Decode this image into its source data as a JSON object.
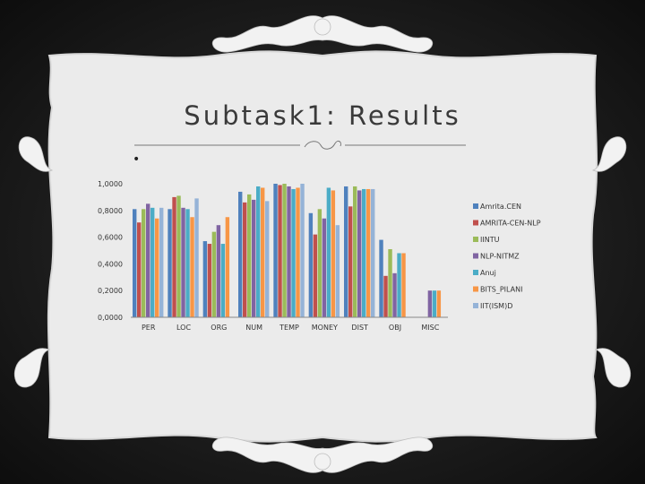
{
  "slide": {
    "title": "Subtask1: Results",
    "bullet": "•"
  },
  "colors": {
    "background": "#1c1c1c",
    "frame": "#ececec",
    "ornament": "#f2f2f2"
  },
  "chart_data": {
    "type": "bar",
    "title": "",
    "xlabel": "",
    "ylabel": "",
    "ylim": [
      0,
      1
    ],
    "grid": false,
    "legend_position": "right",
    "y_ticks": [
      "0,0000",
      "0,2000",
      "0,4000",
      "0,6000",
      "0,8000",
      "1,0000"
    ],
    "y_tick_values": [
      0,
      0.2,
      0.4,
      0.6,
      0.8,
      1.0
    ],
    "categories": [
      "PER",
      "LOC",
      "ORG",
      "NUM",
      "TEMP",
      "MONEY",
      "DIST",
      "OBJ",
      "MISC"
    ],
    "series": [
      {
        "name": "Amrita.CEN",
        "color": "#4f81bd",
        "values": [
          0.81,
          0.81,
          0.57,
          0.94,
          1.0,
          0.78,
          0.98,
          0.58,
          0
        ]
      },
      {
        "name": "AMRITA-CEN-NLP",
        "color": "#c0504d",
        "values": [
          0.71,
          0.9,
          0.55,
          0.86,
          0.99,
          0.62,
          0.83,
          0.31,
          0
        ]
      },
      {
        "name": "IINTU",
        "color": "#9bbb59",
        "values": [
          0.81,
          0.91,
          0.64,
          0.92,
          1.0,
          0.81,
          0.98,
          0.51,
          0
        ]
      },
      {
        "name": "NLP-NITMZ",
        "color": "#8064a2",
        "values": [
          0.85,
          0.82,
          0.69,
          0.88,
          0.98,
          0.74,
          0.95,
          0.33,
          0.2
        ]
      },
      {
        "name": "Anuj",
        "color": "#4bacc6",
        "values": [
          0.82,
          0.81,
          0.55,
          0.98,
          0.96,
          0.97,
          0.96,
          0.48,
          0.2
        ]
      },
      {
        "name": "BITS_PILANI",
        "color": "#f79646",
        "values": [
          0.74,
          0.75,
          0.75,
          0.97,
          0.97,
          0.95,
          0.96,
          0.48,
          0.2
        ]
      },
      {
        "name": "IIT(ISM)D",
        "color": "#95b3d7",
        "values": [
          0.82,
          0.89,
          0.0,
          0.87,
          1.0,
          0.69,
          0.96,
          0.0,
          0
        ]
      }
    ]
  }
}
